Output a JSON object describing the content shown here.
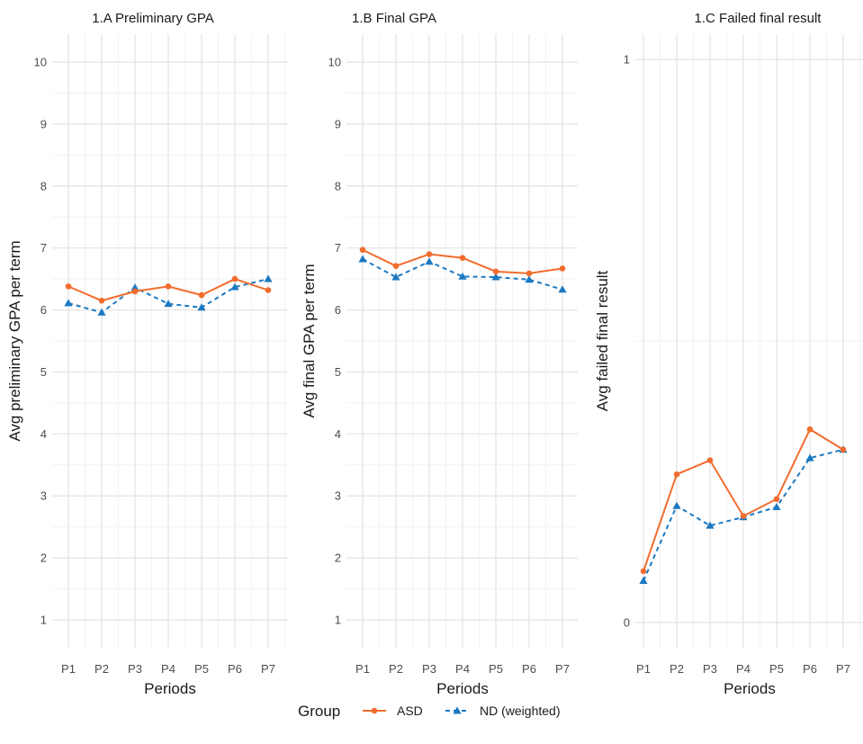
{
  "colors": {
    "asd": "#f26c2e",
    "nd": "#1b79c3",
    "grid_major": "#e3e3e3",
    "grid_minor": "#f2f2f2"
  },
  "legend": {
    "title": "Group",
    "placement": "bottom"
  },
  "chart_data": [
    {
      "type": "line",
      "title": "1.A Preliminary GPA",
      "xlabel": "Periods",
      "ylabel": "Avg preliminary GPA per term",
      "categories": [
        "P1",
        "P2",
        "P3",
        "P4",
        "P5",
        "P6",
        "P7"
      ],
      "ylim": [
        0.55,
        10.45
      ],
      "yticks": [
        1,
        2,
        3,
        4,
        5,
        6,
        7,
        8,
        9,
        10
      ],
      "grid": true,
      "series": [
        {
          "name": "ASD",
          "marker": "circle",
          "line": "solid",
          "values": [
            6.38,
            6.15,
            6.3,
            6.38,
            6.24,
            6.5,
            6.32
          ]
        },
        {
          "name": "ND (weighted)",
          "marker": "triangle",
          "line": "dashed",
          "values": [
            6.11,
            5.96,
            6.36,
            6.1,
            6.04,
            6.37,
            6.5
          ]
        }
      ]
    },
    {
      "type": "line",
      "title": "1.B Final GPA",
      "xlabel": "Periods",
      "ylabel": "Avg final GPA per term",
      "categories": [
        "P1",
        "P2",
        "P3",
        "P4",
        "P5",
        "P6",
        "P7"
      ],
      "ylim": [
        0.55,
        10.45
      ],
      "yticks": [
        1,
        2,
        3,
        4,
        5,
        6,
        7,
        8,
        9,
        10
      ],
      "grid": true,
      "series": [
        {
          "name": "ASD",
          "marker": "circle",
          "line": "solid",
          "values": [
            6.97,
            6.71,
            6.9,
            6.84,
            6.62,
            6.59,
            6.67
          ]
        },
        {
          "name": "ND (weighted)",
          "marker": "triangle",
          "line": "dashed",
          "values": [
            6.82,
            6.53,
            6.78,
            6.54,
            6.53,
            6.49,
            6.33
          ]
        }
      ]
    },
    {
      "type": "line",
      "title": "1.C Failed final result",
      "xlabel": "Periods",
      "ylabel": "Avg failed final result",
      "categories": [
        "P1",
        "P2",
        "P3",
        "P4",
        "P5",
        "P6",
        "P7"
      ],
      "ylim": [
        -0.045,
        1.045
      ],
      "yticks": [
        0,
        1
      ],
      "grid": true,
      "series": [
        {
          "name": "ASD",
          "marker": "circle",
          "line": "solid",
          "values": [
            0.091,
            0.263,
            0.288,
            0.189,
            0.219,
            0.343,
            0.307
          ]
        },
        {
          "name": "ND (weighted)",
          "marker": "triangle",
          "line": "dashed",
          "values": [
            0.074,
            0.207,
            0.172,
            0.187,
            0.205,
            0.292,
            0.307
          ]
        }
      ]
    }
  ]
}
